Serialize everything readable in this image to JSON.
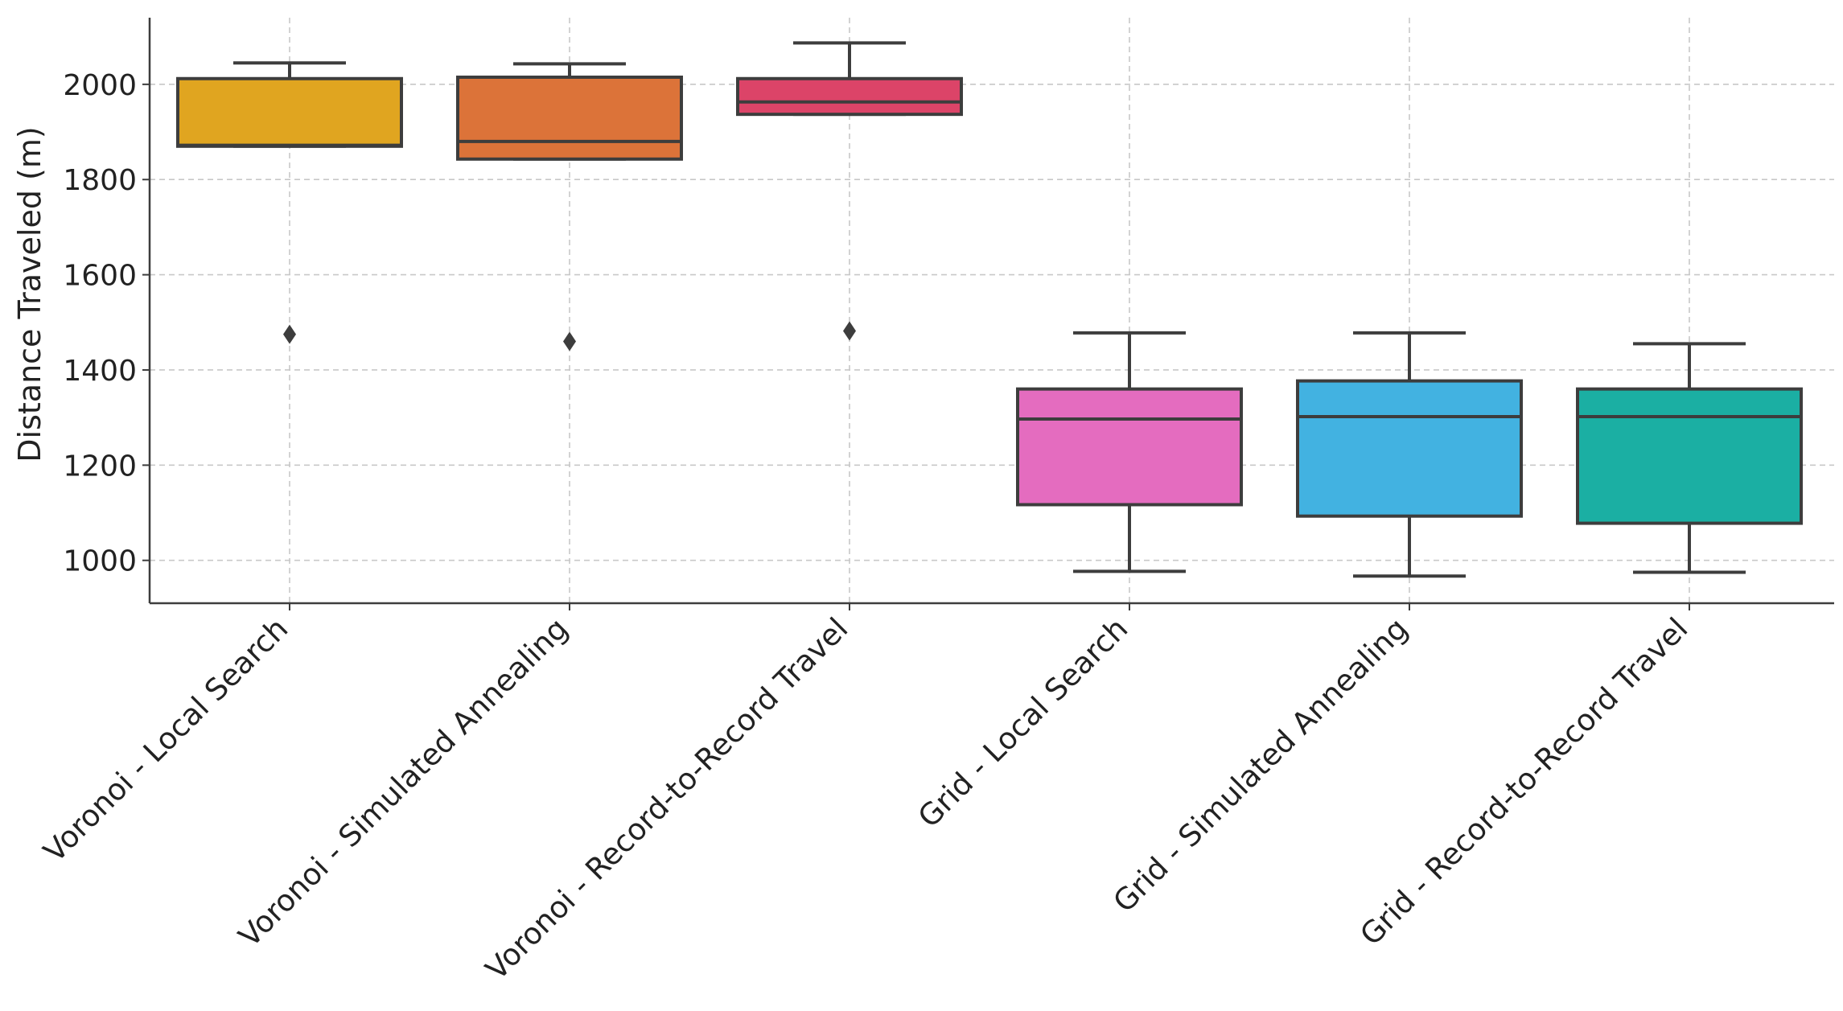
{
  "chart_data": {
    "type": "box",
    "title": "",
    "xlabel": "",
    "ylabel": "Distance Traveled (m)",
    "ylim": [
      910,
      2140
    ],
    "yticks": [
      1000,
      1200,
      1400,
      1600,
      1800,
      2000
    ],
    "grid": true,
    "legend": "none",
    "categories": [
      "Voronoi - Local Search",
      "Voronoi - Simulated Annealing",
      "Voronoi - Record-to-Record Travel",
      "Grid - Local Search",
      "Grid - Simulated Annealing",
      "Grid - Record-to-Record Travel"
    ],
    "boxes": [
      {
        "whisker_low": 1870,
        "q1": 1870,
        "median": 1872,
        "q3": 2012,
        "whisker_high": 2045,
        "outliers": [
          1475
        ],
        "color": "#E0A520"
      },
      {
        "whisker_low": 1843,
        "q1": 1843,
        "median": 1880,
        "q3": 2015,
        "whisker_high": 2043,
        "outliers": [
          1460
        ],
        "color": "#DC7339"
      },
      {
        "whisker_low": 1937,
        "q1": 1937,
        "median": 1963,
        "q3": 2012,
        "whisker_high": 2087,
        "outliers": [
          1482
        ],
        "color": "#DC4468"
      },
      {
        "whisker_low": 977,
        "q1": 1117,
        "median": 1297,
        "q3": 1360,
        "whisker_high": 1478,
        "outliers": [],
        "color": "#E46CBF"
      },
      {
        "whisker_low": 967,
        "q1": 1093,
        "median": 1302,
        "q3": 1377,
        "whisker_high": 1478,
        "outliers": [],
        "color": "#42B2E1"
      },
      {
        "whisker_low": 975,
        "q1": 1078,
        "median": 1302,
        "q3": 1360,
        "whisker_high": 1455,
        "outliers": [],
        "color": "#1BAFA3"
      }
    ]
  }
}
